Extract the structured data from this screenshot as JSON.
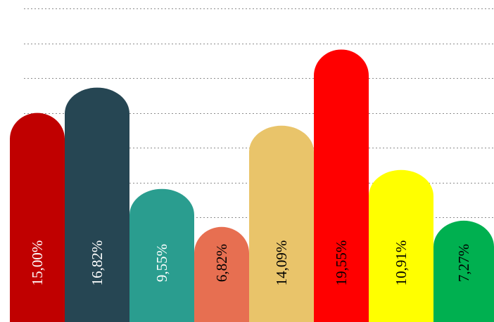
{
  "chart_data": {
    "type": "bar",
    "values": [
      15.0,
      16.82,
      9.55,
      6.82,
      14.09,
      19.55,
      10.91,
      7.27
    ],
    "data_labels": [
      "15,00%",
      "16,82%",
      "9,55%",
      "6,82%",
      "14,09%",
      "19,55%",
      "10,91%",
      "7,27%"
    ],
    "colors": [
      "#c00000",
      "#264653",
      "#2a9d8f",
      "#e76f51",
      "#e9c46a",
      "#ff0000",
      "#ffff00",
      "#00b050"
    ],
    "label_colors": [
      "#ffffff",
      "#ffffff",
      "#ffffff",
      "#000000",
      "#000000",
      "#000000",
      "#000000",
      "#000000"
    ],
    "ylim": [
      0,
      22.5
    ],
    "grid": true,
    "grid_style": "dotted"
  }
}
